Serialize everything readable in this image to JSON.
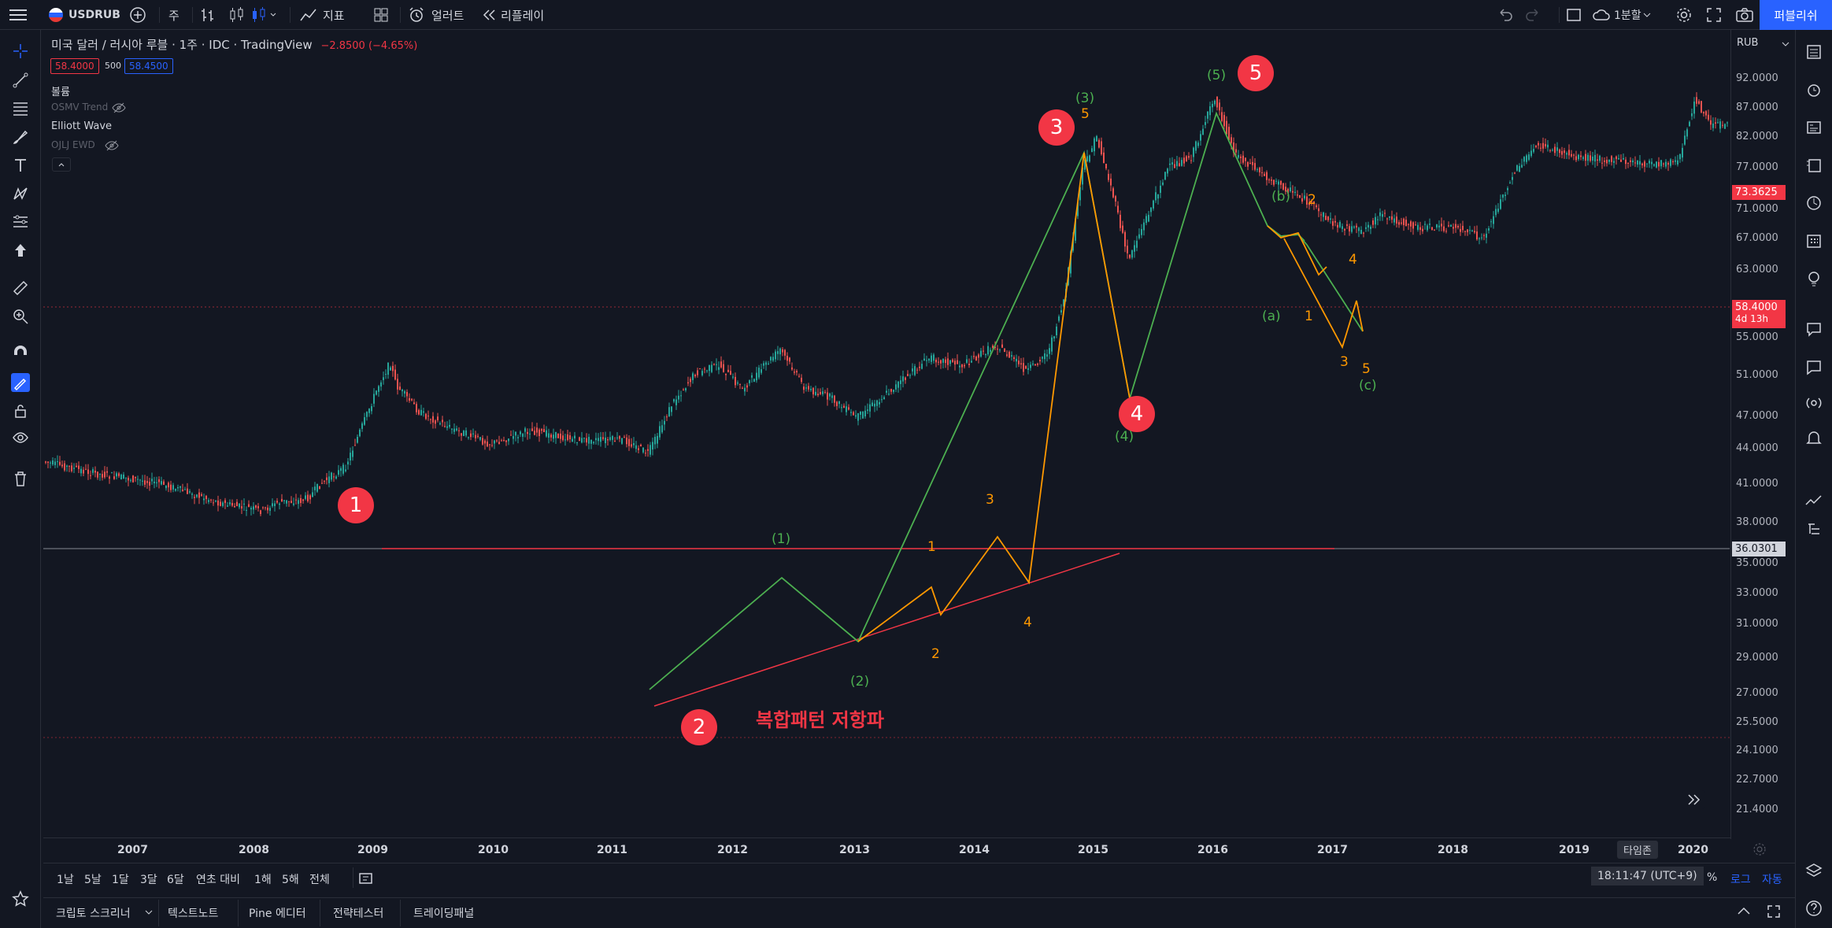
{
  "topbar": {
    "symbol": "USDRUB",
    "interval": "주",
    "indicators": "지표",
    "alert": "얼러트",
    "replay": "리플레이",
    "layout": "1분할",
    "publish": "퍼블리쉬"
  },
  "legend": {
    "title": "미국 달러 / 러시아 루블 · 1주 · IDC · TradingView",
    "change": "−2.8500 (−4.65%)",
    "bid": "58.4000",
    "spread": "500",
    "ask": "58.4500",
    "indicators": [
      {
        "name": "볼륨",
        "sub": "OSMV Trend"
      },
      {
        "name": "Elliott Wave",
        "sub": "OJLJ EWD"
      }
    ]
  },
  "price_axis": {
    "currency": "RUB",
    "ticks": [
      "92.0000",
      "87.0000",
      "82.0000",
      "77.0000",
      "71.0000",
      "67.0000",
      "63.0000",
      "55.0000",
      "51.0000",
      "47.0000",
      "44.0000",
      "41.0000",
      "38.0000",
      "35.0000",
      "33.0000",
      "31.0000",
      "29.0000",
      "27.0000",
      "25.5000",
      "24.1000",
      "22.7000",
      "21.4000"
    ],
    "last_price": "73.3625",
    "marked_price": "58.4000",
    "marked_countdown": "4d 13h",
    "hline_price": "36.0301"
  },
  "time_axis": {
    "years": [
      "2007",
      "2008",
      "2009",
      "2010",
      "2011",
      "2012",
      "2013",
      "2014",
      "2015",
      "2016",
      "2017",
      "2018",
      "2019",
      "2020"
    ],
    "timezone_btn": "타임존"
  },
  "annotations": {
    "circles": [
      "1",
      "2",
      "3",
      "4",
      "5"
    ],
    "green": [
      "(1)",
      "(2)",
      "(3)",
      "(4)",
      "(5)",
      "(a)",
      "(b)",
      "(c)"
    ],
    "orange": [
      "1",
      "2",
      "3",
      "4",
      "5",
      "1",
      "2",
      "3",
      "4",
      "5"
    ],
    "pattern_text": "복합패턴 저항파"
  },
  "bottombar": {
    "ranges": [
      "1날",
      "5날",
      "1달",
      "3달",
      "6달",
      "연초 대비",
      "1해",
      "5해",
      "전체"
    ],
    "clock": "18:11:47 (UTC+9)",
    "percent": "%",
    "log": "로그",
    "auto": "자동"
  },
  "panels": [
    "크립토 스크리너",
    "텍스트노트",
    "Pine 에디터",
    "전략테스터",
    "트레이딩패널"
  ],
  "colors": {
    "background": "#131722",
    "accent": "#2962ff",
    "up": "#26a69a",
    "down": "#ef5350",
    "wave_green": "#4caf50",
    "wave_orange": "#ff9800",
    "red_marker": "#f23645"
  }
}
